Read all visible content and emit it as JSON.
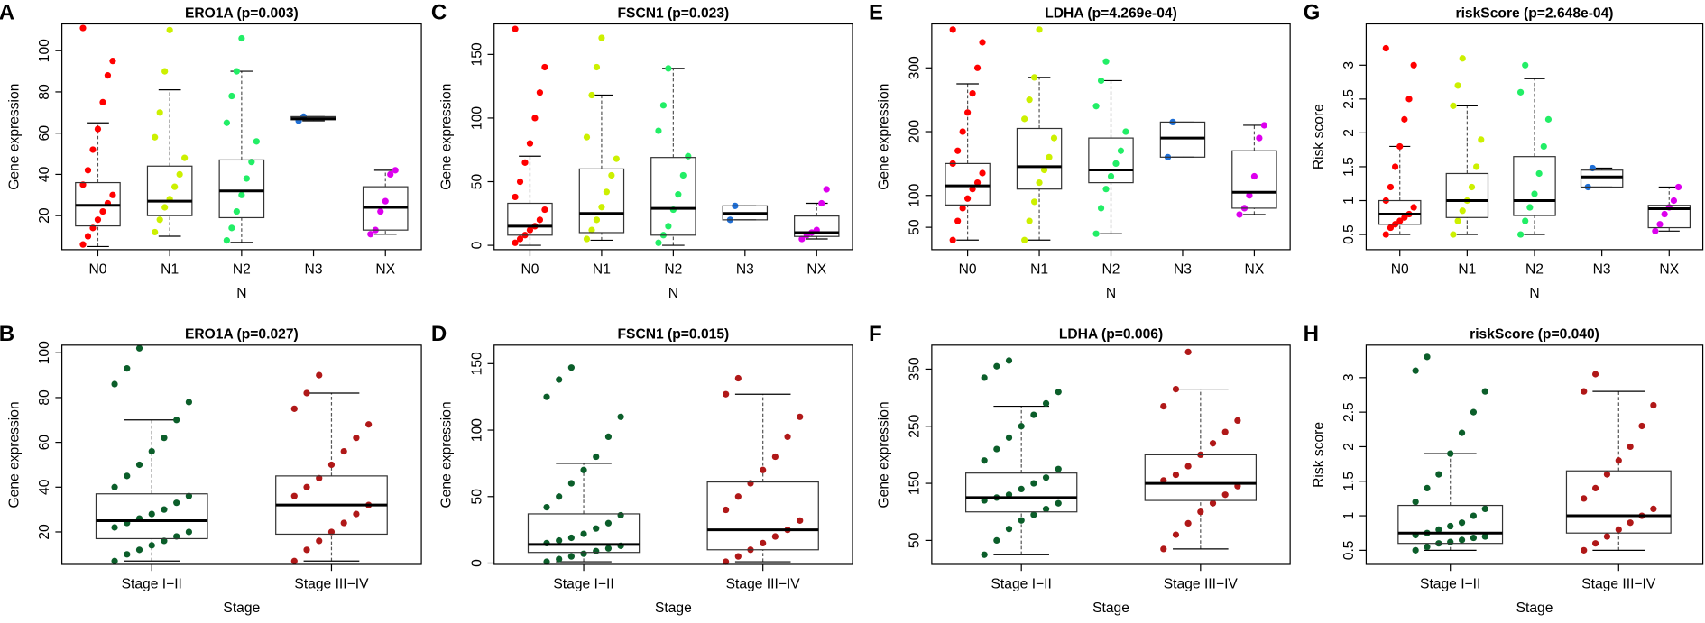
{
  "chart_data": [
    {
      "type": "box",
      "panel": "A",
      "title": "ERO1A (p=0.003)",
      "xlabel": "N",
      "ylabel": "Gene expression",
      "categories": [
        "N0",
        "N1",
        "N2",
        "N3",
        "NX"
      ],
      "colors": [
        "#ff0000",
        "#ccf000",
        "#22ee66",
        "#1f6fd6",
        "#dd00ee"
      ],
      "ylim": [
        3.5,
        113
      ],
      "yticks": [
        20,
        40,
        60,
        80,
        100
      ],
      "stats": [
        [
          5,
          15,
          25,
          36,
          65
        ],
        [
          10,
          20,
          27,
          44,
          81
        ],
        [
          7,
          19,
          32,
          47,
          90
        ],
        [
          66,
          66.5,
          67,
          68,
          68
        ],
        [
          11,
          13,
          24,
          34,
          42
        ]
      ],
      "points": [
        [
          6,
          10,
          14,
          18,
          22,
          26,
          30,
          35,
          42,
          52,
          62,
          75,
          88,
          95,
          111
        ],
        [
          12,
          18,
          24,
          28,
          34,
          40,
          48,
          58,
          70,
          90,
          110
        ],
        [
          8,
          14,
          22,
          30,
          38,
          46,
          56,
          65,
          78,
          90,
          106
        ],
        [
          66,
          68
        ],
        [
          11,
          13,
          22,
          27,
          40,
          42
        ]
      ]
    },
    {
      "type": "box",
      "panel": "C",
      "title": "FSCN1 (p=0.023)",
      "xlabel": "N",
      "ylabel": "Gene expression",
      "categories": [
        "N0",
        "N1",
        "N2",
        "N3",
        "NX"
      ],
      "colors": [
        "#ff0000",
        "#ccf000",
        "#22ee66",
        "#1f6fd6",
        "#dd00ee"
      ],
      "ylim": [
        -3.4,
        174
      ],
      "yticks": [
        0,
        50,
        100,
        150
      ],
      "stats": [
        [
          0,
          8,
          15,
          33,
          70
        ],
        [
          4,
          10,
          25,
          60,
          118
        ],
        [
          0,
          8,
          29,
          69,
          139
        ],
        [
          20,
          20,
          25,
          31,
          31
        ],
        [
          5,
          7,
          10,
          23,
          33
        ]
      ],
      "points": [
        [
          2,
          5,
          8,
          12,
          15,
          20,
          28,
          38,
          50,
          65,
          80,
          100,
          120,
          140,
          170
        ],
        [
          5,
          12,
          20,
          30,
          42,
          55,
          68,
          85,
          118,
          140,
          163
        ],
        [
          2,
          8,
          15,
          28,
          40,
          55,
          70,
          90,
          110,
          139
        ],
        [
          20,
          31
        ],
        [
          5,
          8,
          10,
          12,
          33,
          44
        ]
      ]
    },
    {
      "type": "box",
      "panel": "E",
      "title": "LDHA (p=4.269e-04)",
      "xlabel": "N",
      "ylabel": "Gene expression",
      "categories": [
        "N0",
        "N1",
        "N2",
        "N3",
        "NX"
      ],
      "colors": [
        "#ff0000",
        "#ccf000",
        "#22ee66",
        "#1f6fd6",
        "#dd00ee"
      ],
      "ylim": [
        15,
        369
      ],
      "yticks": [
        50,
        100,
        200,
        300
      ],
      "stats": [
        [
          30,
          85,
          115,
          150,
          275
        ],
        [
          30,
          110,
          145,
          205,
          285
        ],
        [
          40,
          120,
          140,
          190,
          280
        ],
        [
          160,
          160,
          190,
          215,
          215
        ],
        [
          70,
          80,
          105,
          170,
          210
        ]
      ],
      "points": [
        [
          30,
          60,
          80,
          95,
          110,
          120,
          135,
          150,
          170,
          200,
          230,
          260,
          300,
          340,
          360
        ],
        [
          30,
          60,
          90,
          120,
          140,
          160,
          190,
          220,
          250,
          285,
          360
        ],
        [
          40,
          80,
          110,
          130,
          150,
          170,
          200,
          240,
          280,
          310
        ],
        [
          160,
          215
        ],
        [
          70,
          80,
          100,
          130,
          190,
          210
        ]
      ]
    },
    {
      "type": "box",
      "panel": "G",
      "title": "riskScore (p=2.648e-04)",
      "xlabel": "N",
      "ylabel": "Risk score",
      "categories": [
        "N0",
        "N1",
        "N2",
        "N3",
        "NX"
      ],
      "colors": [
        "#ff0000",
        "#ccf000",
        "#22ee66",
        "#1f6fd6",
        "#dd00ee"
      ],
      "ylim": [
        0.276,
        3.61
      ],
      "yticks": [
        0.5,
        1.0,
        1.5,
        2.0,
        2.5,
        3.0
      ],
      "stats": [
        [
          0.5,
          0.65,
          0.8,
          1.0,
          1.8
        ],
        [
          0.5,
          0.75,
          1.0,
          1.4,
          2.4
        ],
        [
          0.5,
          0.78,
          1.0,
          1.65,
          2.8
        ],
        [
          1.2,
          1.2,
          1.35,
          1.45,
          1.48
        ],
        [
          0.55,
          0.6,
          0.88,
          0.93,
          1.2
        ]
      ],
      "points": [
        [
          0.5,
          0.6,
          0.65,
          0.7,
          0.75,
          0.8,
          0.9,
          1.0,
          1.2,
          1.5,
          1.8,
          2.2,
          2.5,
          3.0,
          3.25
        ],
        [
          0.5,
          0.7,
          0.85,
          1.0,
          1.2,
          1.5,
          1.9,
          2.4,
          2.7,
          3.1
        ],
        [
          0.5,
          0.7,
          0.9,
          1.1,
          1.4,
          1.8,
          2.2,
          2.6,
          3.0
        ],
        [
          1.2,
          1.48
        ],
        [
          0.55,
          0.65,
          0.8,
          0.9,
          1.0,
          1.2
        ]
      ]
    },
    {
      "type": "box",
      "panel": "B",
      "title": "ERO1A (p=0.027)",
      "xlabel": "Stage",
      "ylabel": "Gene expression",
      "categories": [
        "Stage I−II",
        "Stage III−IV"
      ],
      "colors": [
        "#0b5e2a",
        "#b01818"
      ],
      "ylim": [
        5.5,
        103.4
      ],
      "yticks": [
        20,
        40,
        60,
        80,
        100
      ],
      "stats": [
        [
          7,
          17,
          25,
          37,
          70
        ],
        [
          7,
          19,
          32,
          45,
          82
        ]
      ],
      "points": [
        [
          7,
          10,
          12,
          14,
          16,
          18,
          20,
          22,
          24,
          26,
          28,
          30,
          33,
          36,
          40,
          45,
          50,
          56,
          62,
          70,
          78,
          86,
          93,
          102
        ],
        [
          7,
          12,
          16,
          20,
          24,
          28,
          32,
          36,
          40,
          44,
          50,
          56,
          62,
          68,
          75,
          82,
          90
        ]
      ]
    },
    {
      "type": "box",
      "panel": "D",
      "title": "FSCN1 (p=0.015)",
      "xlabel": "Stage",
      "ylabel": "Gene expression",
      "categories": [
        "Stage I−II",
        "Stage III−IV"
      ],
      "colors": [
        "#0b5e2a",
        "#b01818"
      ],
      "ylim": [
        -1,
        163.9
      ],
      "yticks": [
        0,
        50,
        100,
        150
      ],
      "stats": [
        [
          1,
          8,
          14,
          37,
          75
        ],
        [
          1,
          10,
          25,
          61,
          127
        ]
      ],
      "points": [
        [
          1,
          3,
          5,
          7,
          9,
          11,
          13,
          15,
          17,
          19,
          22,
          26,
          30,
          36,
          42,
          50,
          60,
          70,
          80,
          95,
          110,
          125,
          138,
          147
        ],
        [
          1,
          5,
          10,
          15,
          20,
          25,
          32,
          40,
          50,
          60,
          70,
          80,
          95,
          110,
          127,
          139
        ]
      ]
    },
    {
      "type": "box",
      "panel": "F",
      "title": "LDHA (p=0.006)",
      "xlabel": "Stage",
      "ylabel": "Gene expression",
      "categories": [
        "Stage I−II",
        "Stage III−IV"
      ],
      "colors": [
        "#0b5e2a",
        "#b01818"
      ],
      "ylim": [
        8,
        392
      ],
      "yticks": [
        50,
        150,
        250,
        350
      ],
      "stats": [
        [
          25,
          100,
          125,
          168,
          285
        ],
        [
          35,
          120,
          150,
          200,
          315
        ]
      ],
      "points": [
        [
          25,
          50,
          70,
          85,
          95,
          105,
          115,
          120,
          125,
          130,
          140,
          150,
          160,
          175,
          190,
          210,
          230,
          250,
          270,
          290,
          310,
          335,
          355,
          365
        ],
        [
          35,
          60,
          80,
          100,
          115,
          130,
          145,
          155,
          165,
          180,
          200,
          220,
          240,
          260,
          285,
          315,
          380
        ]
      ]
    },
    {
      "type": "box",
      "panel": "H",
      "title": "riskScore (p=0.040)",
      "xlabel": "Stage",
      "ylabel": "Risk score",
      "categories": [
        "Stage I−II",
        "Stage III−IV"
      ],
      "colors": [
        "#0b5e2a",
        "#b01818"
      ],
      "ylim": [
        0.296,
        3.47
      ],
      "yticks": [
        0.5,
        1.0,
        1.5,
        2.0,
        2.5,
        3.0
      ],
      "stats": [
        [
          0.5,
          0.6,
          0.75,
          1.15,
          1.9
        ],
        [
          0.5,
          0.75,
          1.0,
          1.65,
          2.8
        ]
      ],
      "points": [
        [
          0.5,
          0.55,
          0.6,
          0.62,
          0.65,
          0.68,
          0.7,
          0.72,
          0.75,
          0.8,
          0.85,
          0.9,
          1.0,
          1.1,
          1.2,
          1.4,
          1.6,
          1.9,
          2.2,
          2.5,
          2.8,
          3.1,
          3.3
        ],
        [
          0.5,
          0.6,
          0.7,
          0.8,
          0.9,
          1.0,
          1.1,
          1.25,
          1.4,
          1.6,
          1.8,
          2.0,
          2.3,
          2.6,
          2.8,
          3.05
        ]
      ]
    }
  ]
}
